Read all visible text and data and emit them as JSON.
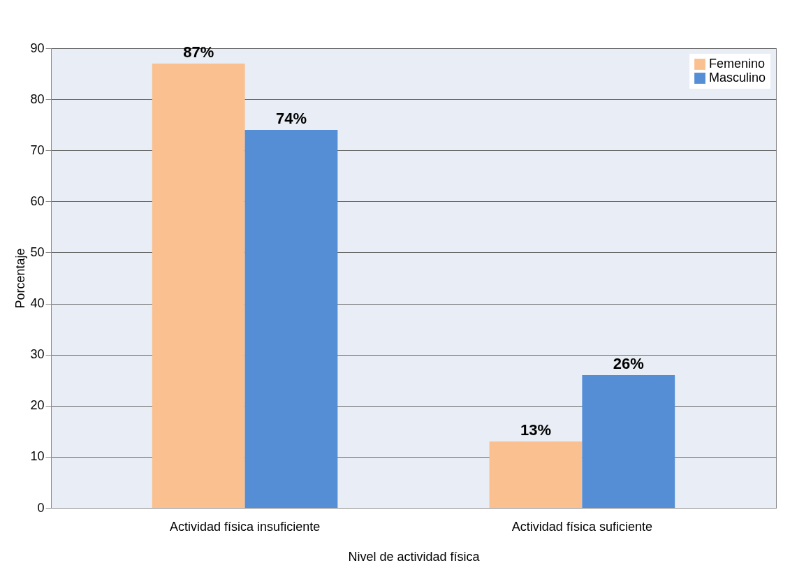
{
  "chart_data": {
    "type": "bar",
    "xlabel": "Nivel de actividad física",
    "ylabel": "Porcentaje",
    "categories": [
      "Actividad física insuficiente",
      "Actividad física suficiente"
    ],
    "series": [
      {
        "name": "Femenino",
        "color": "#fac090",
        "values": [
          87,
          13
        ],
        "value_labels": [
          "87%",
          "13%"
        ]
      },
      {
        "name": "Masculino",
        "color": "#558ed5",
        "values": [
          74,
          26
        ],
        "value_labels": [
          "74%",
          "26%"
        ]
      }
    ],
    "ylim": [
      0,
      90
    ],
    "yticks": [
      0,
      10,
      20,
      30,
      40,
      50,
      60,
      70,
      80,
      90
    ],
    "grid": "y",
    "legend": "top right"
  }
}
